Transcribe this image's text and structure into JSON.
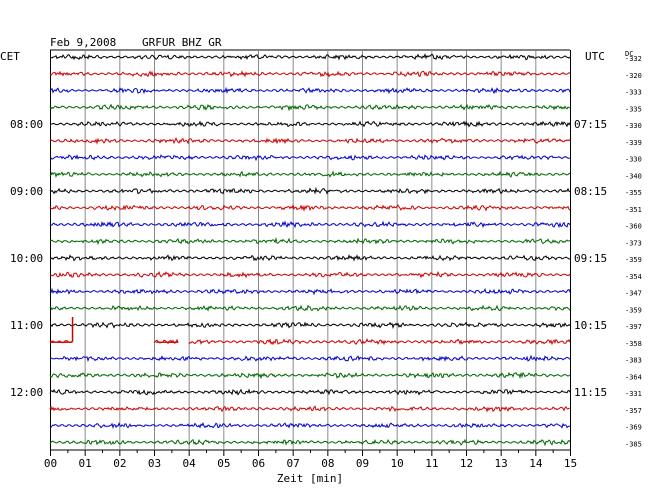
{
  "header": {
    "date": "Feb 9,2008",
    "station": "GRFUR BHZ GR",
    "left_zone": "CET",
    "right_zone": "UTC",
    "dc_label": "DC"
  },
  "chart_data": {
    "type": "line",
    "title": "Feb 9,2008   GRFUR BHZ GR",
    "xlabel": "Zeit [min]",
    "xlim": [
      0,
      15
    ],
    "x_ticks": [
      "00",
      "01",
      "02",
      "03",
      "04",
      "05",
      "06",
      "07",
      "08",
      "09",
      "10",
      "11",
      "12",
      "13",
      "14",
      "15"
    ],
    "grid": true,
    "trace_minutes": 15,
    "trace_colors": [
      "#000000",
      "#cc0000",
      "#0000cc",
      "#006600"
    ],
    "left_hour_labels": [
      {
        "trace": 4,
        "label": "08:00"
      },
      {
        "trace": 8,
        "label": "09:00"
      },
      {
        "trace": 12,
        "label": "10:00"
      },
      {
        "trace": 16,
        "label": "11:00"
      },
      {
        "trace": 20,
        "label": "12:00"
      }
    ],
    "right_hour_labels": [
      {
        "trace": 4,
        "label": "07:15"
      },
      {
        "trace": 8,
        "label": "08:15"
      },
      {
        "trace": 12,
        "label": "09:15"
      },
      {
        "trace": 16,
        "label": "10:15"
      },
      {
        "trace": 20,
        "label": "11:15"
      }
    ],
    "dc_offsets": [
      "-332",
      "-320",
      "-333",
      "-335",
      "-330",
      "-339",
      "-330",
      "-340",
      "-355",
      "-351",
      "-360",
      "-373",
      "-359",
      "-354",
      "-347",
      "-359",
      "-397",
      "-358",
      "-383",
      "-364",
      "-331",
      "-357",
      "-369",
      "-385"
    ],
    "gaps": [
      {
        "trace": 17,
        "from_min": 0.65,
        "to_min": 3.0
      },
      {
        "trace": 17,
        "from_min": 3.7,
        "to_min": 4.0
      }
    ],
    "spike": {
      "trace": 16,
      "at_min": 0.65,
      "dc": -397
    }
  }
}
